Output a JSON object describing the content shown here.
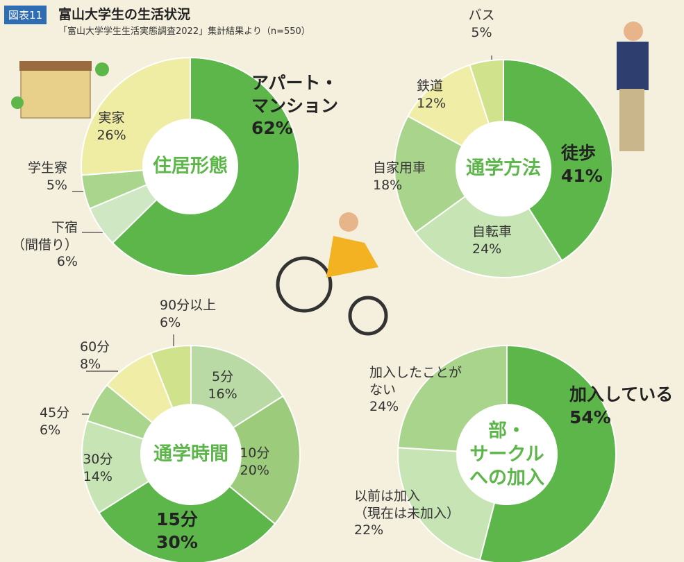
{
  "header": {
    "badge": "図表11",
    "title": "富山大学生の生活状況",
    "subtitle": "「富山大学学生生活実態調査2022」集計結果より（n=550）"
  },
  "chart_data": [
    {
      "type": "pie",
      "title": "住居形態",
      "categories": [
        "アパート・\nマンション",
        "下宿\n（間借り）",
        "学生寮",
        "実家"
      ],
      "values": [
        62,
        6,
        5,
        26
      ],
      "value_labels": [
        "62%",
        "6%",
        "5%",
        "26%"
      ],
      "colors": [
        "#5db64a",
        "#cfe7c2",
        "#a9d68c",
        "#efeda3"
      ]
    },
    {
      "type": "pie",
      "title": "通学方法",
      "categories": [
        "徒歩",
        "自転車",
        "自家用車",
        "鉄道",
        "バス"
      ],
      "values": [
        41,
        24,
        18,
        12,
        5
      ],
      "value_labels": [
        "41%",
        "24%",
        "18%",
        "12%",
        "5%"
      ],
      "colors": [
        "#5db64a",
        "#c7e4b5",
        "#a9d48b",
        "#f0eea6",
        "#d0e28c"
      ]
    },
    {
      "type": "pie",
      "title": "通学時間",
      "categories": [
        "5分",
        "10分",
        "15分",
        "30分",
        "45分",
        "60分",
        "90分以上"
      ],
      "values": [
        16,
        20,
        30,
        14,
        6,
        8,
        6
      ],
      "value_labels": [
        "16%",
        "20%",
        "30%",
        "14%",
        "6%",
        "8%",
        "6%"
      ],
      "colors": [
        "#b9d9a5",
        "#9ccb7c",
        "#5db64a",
        "#c7e4b5",
        "#a9d68c",
        "#f0eea6",
        "#d0e28c"
      ]
    },
    {
      "type": "pie",
      "title": "部・\nサークル\nへの加入",
      "categories": [
        "加入している",
        "以前は加入\n（現在は未加入）",
        "加入したことが\nない"
      ],
      "values": [
        54,
        22,
        24
      ],
      "value_labels": [
        "54%",
        "22%",
        "24%"
      ],
      "colors": [
        "#5db64a",
        "#c7e4b5",
        "#a9d48b"
      ]
    }
  ]
}
